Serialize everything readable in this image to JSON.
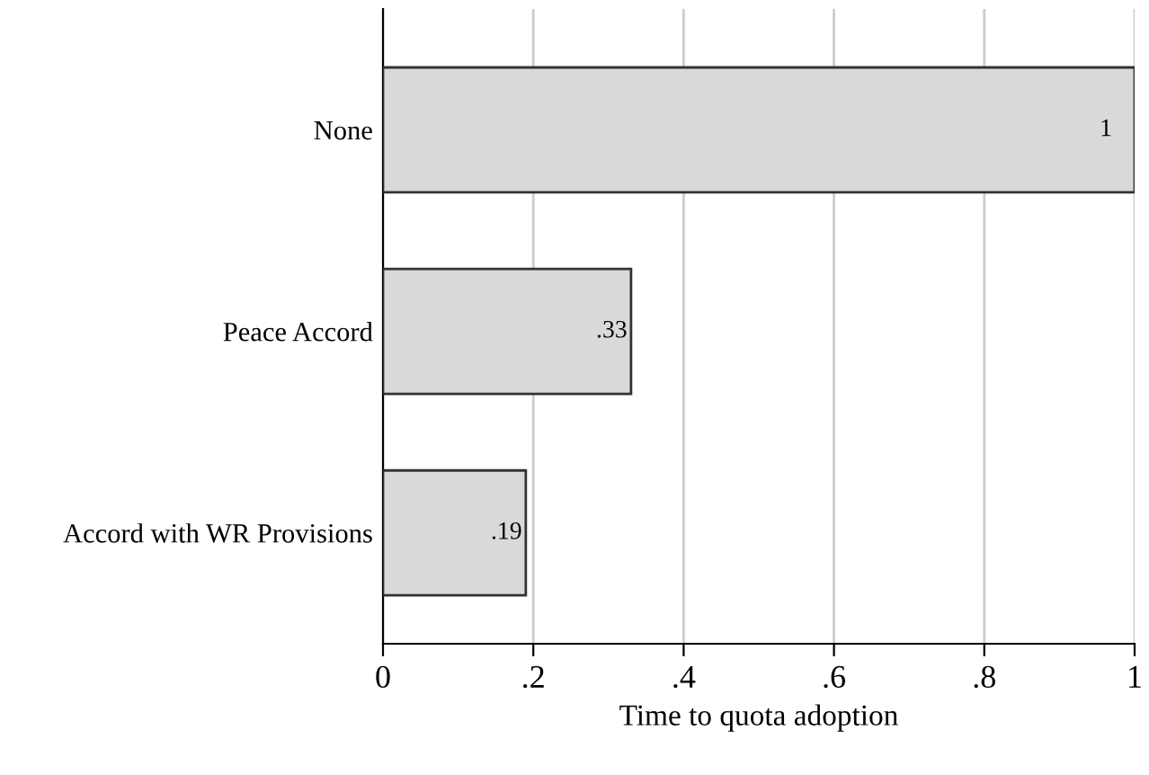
{
  "chart_data": {
    "type": "bar",
    "orientation": "horizontal",
    "xlabel": "Time to quota adoption",
    "categories": [
      "None",
      "Peace Accord",
      "Accord with WR Provisions"
    ],
    "values": [
      1,
      0.33,
      0.19
    ],
    "value_labels": [
      "1",
      ".33",
      ".19"
    ],
    "color": "#d9d9d9",
    "xlim": [
      0,
      1
    ],
    "xticks": [
      0,
      {
        "value": 0.2,
        "label": ".2"
      },
      {
        "value": 0.4,
        "label": ".4"
      },
      {
        "value": 0.6,
        "label": ".6"
      },
      {
        "value": 0.8,
        "label": ".8"
      },
      1
    ],
    "grid": "x",
    "legend": false
  }
}
